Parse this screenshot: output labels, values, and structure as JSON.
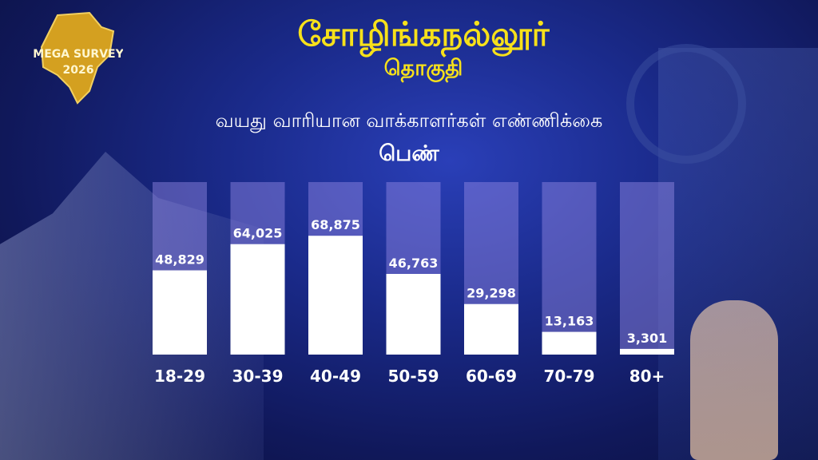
{
  "header": {
    "title": "சோழிங்கநல்லூர்",
    "subtitle": "தொகுதி"
  },
  "logo": {
    "line1": "MEGA SURVEY",
    "line2": "2026"
  },
  "chart_heading": "வயது வாரியான வாக்காளர்கள் எண்ணிக்கை",
  "chart_category": "பெண்",
  "colors": {
    "title": "#f7e11a",
    "bar": "#ffffff",
    "bar_track": "#9b8ff0"
  },
  "chart_data": {
    "type": "bar",
    "title": "வயது வாரியான வாக்காளர்கள் எண்ணிக்கை",
    "categories": [
      "18-29",
      "30-39",
      "40-49",
      "50-59",
      "60-69",
      "70-79",
      "80+"
    ],
    "values": [
      48829,
      64025,
      68875,
      46763,
      29298,
      13163,
      3301
    ],
    "value_labels": [
      "48,829",
      "64,025",
      "68,875",
      "46,763",
      "29,298",
      "13,163",
      "3,301"
    ],
    "ylim": [
      0,
      100000
    ],
    "grid": false
  }
}
